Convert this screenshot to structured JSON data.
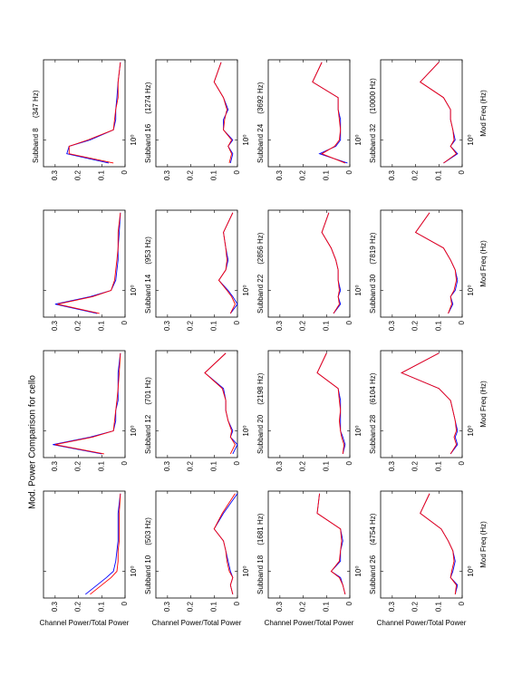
{
  "title": "Mod. Power Comparison for cello",
  "chart_data": [
    {
      "type": "line",
      "ylabel": "Channel Power/Total Power",
      "x": [
        0.55,
        0.7,
        0.85,
        1,
        1.3,
        1.7,
        2.2,
        3,
        4.5,
        7.5
      ],
      "xlim": [
        0.5,
        8
      ],
      "xscale": "log",
      "xticks": [
        {
          "value": 1,
          "label": "10⁰"
        }
      ],
      "ylim": [
        0,
        0.35
      ],
      "yticks": [
        0,
        0.1,
        0.2,
        0.3
      ],
      "series": [
        {
          "color": "#0000ff",
          "values": [
            0.17,
            0.12,
            0.08,
            0.05,
            0.04,
            0.035,
            0.03,
            0.03,
            0.03,
            0.02
          ]
        },
        {
          "color": "#ff0000",
          "values": [
            0.15,
            0.1,
            0.06,
            0.035,
            0.03,
            0.03,
            0.025,
            0.025,
            0.025,
            0.02
          ]
        }
      ]
    },
    {
      "type": "line",
      "x": [
        0.55,
        0.7,
        0.85,
        1,
        1.3,
        1.7,
        2.2,
        3,
        4.5,
        7.5
      ],
      "xlim": [
        0.5,
        8
      ],
      "xscale": "log",
      "xticks": [
        {
          "value": 1,
          "label": "10⁰"
        }
      ],
      "ylim": [
        0,
        0.35
      ],
      "yticks": [
        0,
        0.1,
        0.2,
        0.3
      ],
      "series": [
        {
          "color": "#0000ff",
          "values": [
            0.1,
            0.31,
            0.15,
            0.05,
            0.04,
            0.04,
            0.03,
            0.03,
            0.03,
            0.02
          ]
        },
        {
          "color": "#ff0000",
          "values": [
            0.09,
            0.3,
            0.14,
            0.05,
            0.045,
            0.04,
            0.035,
            0.03,
            0.025,
            0.02
          ]
        }
      ]
    },
    {
      "type": "line",
      "x": [
        0.55,
        0.7,
        0.85,
        1,
        1.3,
        1.7,
        2.2,
        3,
        4.5,
        7.5
      ],
      "xlim": [
        0.5,
        8
      ],
      "xscale": "log",
      "xticks": [
        {
          "value": 1,
          "label": "10⁰"
        }
      ],
      "ylim": [
        0,
        0.35
      ],
      "yticks": [
        0,
        0.1,
        0.2,
        0.3
      ],
      "series": [
        {
          "color": "#0000ff",
          "values": [
            0.12,
            0.3,
            0.15,
            0.06,
            0.04,
            0.035,
            0.03,
            0.03,
            0.025,
            0.02
          ]
        },
        {
          "color": "#ff0000",
          "values": [
            0.11,
            0.29,
            0.14,
            0.06,
            0.045,
            0.04,
            0.035,
            0.03,
            0.03,
            0.02
          ]
        }
      ]
    },
    {
      "type": "line",
      "title": "Subband 8     (347 Hz)",
      "x": [
        0.55,
        0.7,
        0.85,
        1,
        1.3,
        1.7,
        2.2,
        3,
        4.5,
        7.5
      ],
      "xlim": [
        0.5,
        8
      ],
      "xscale": "log",
      "xticks": [
        {
          "value": 1,
          "label": "10⁰"
        }
      ],
      "ylim": [
        0,
        0.35
      ],
      "yticks": [
        0,
        0.1,
        0.2,
        0.3
      ],
      "series": [
        {
          "color": "#0000ff",
          "values": [
            0.07,
            0.25,
            0.24,
            0.15,
            0.05,
            0.04,
            0.04,
            0.035,
            0.03,
            0.02
          ]
        },
        {
          "color": "#ff0000",
          "values": [
            0.05,
            0.24,
            0.24,
            0.16,
            0.05,
            0.045,
            0.04,
            0.03,
            0.03,
            0.02
          ]
        }
      ]
    },
    {
      "type": "line",
      "title": "Subband 10     (503 Hz)",
      "ylabel": "Channel Power/Total Power",
      "x": [
        0.55,
        0.7,
        0.85,
        1,
        1.3,
        1.7,
        2.2,
        3,
        4.5,
        7.5
      ],
      "xlim": [
        0.5,
        8
      ],
      "xscale": "log",
      "xticks": [
        {
          "value": 1,
          "label": "10⁰"
        }
      ],
      "ylim": [
        0,
        0.35
      ],
      "yticks": [
        0,
        0.1,
        0.2,
        0.3
      ],
      "series": [
        {
          "color": "#0000ff",
          "values": [
            0.02,
            0.03,
            0.02,
            0.03,
            0.04,
            0.05,
            0.06,
            0.1,
            0.06,
            0.0
          ]
        },
        {
          "color": "#ff0000",
          "values": [
            0.02,
            0.03,
            0.02,
            0.035,
            0.045,
            0.05,
            0.06,
            0.1,
            0.065,
            0.01
          ]
        }
      ]
    },
    {
      "type": "line",
      "title": "Subband 12     (701 Hz)",
      "x": [
        0.55,
        0.7,
        0.85,
        1,
        1.3,
        1.7,
        2.2,
        3,
        4.5,
        7.5
      ],
      "xlim": [
        0.5,
        8
      ],
      "xscale": "log",
      "xticks": [
        {
          "value": 1,
          "label": "10⁰"
        }
      ],
      "ylim": [
        0,
        0.35
      ],
      "yticks": [
        0,
        0.1,
        0.2,
        0.3
      ],
      "series": [
        {
          "color": "#0000ff",
          "values": [
            0.02,
            0.0,
            0.03,
            0.02,
            0.04,
            0.05,
            0.05,
            0.06,
            0.14,
            0.05
          ]
        },
        {
          "color": "#ff0000",
          "values": [
            0.03,
            0.01,
            0.03,
            0.025,
            0.04,
            0.05,
            0.05,
            0.065,
            0.14,
            0.05
          ]
        }
      ]
    },
    {
      "type": "line",
      "title": "Subband 14     (953 Hz)",
      "x": [
        0.55,
        0.7,
        0.85,
        1,
        1.3,
        1.7,
        2.2,
        3,
        4.5,
        7.5
      ],
      "xlim": [
        0.5,
        8
      ],
      "xscale": "log",
      "xticks": [
        {
          "value": 1,
          "label": "10⁰"
        }
      ],
      "ylim": [
        0,
        0.35
      ],
      "yticks": [
        0,
        0.1,
        0.2,
        0.3
      ],
      "series": [
        {
          "color": "#0000ff",
          "values": [
            0.03,
            0.0,
            0.02,
            0.04,
            0.08,
            0.05,
            0.04,
            0.05,
            0.06,
            0.02
          ]
        },
        {
          "color": "#ff0000",
          "values": [
            0.03,
            0.01,
            0.025,
            0.045,
            0.08,
            0.05,
            0.045,
            0.05,
            0.06,
            0.02
          ]
        }
      ]
    },
    {
      "type": "line",
      "title": "Subband 16     (1274 Hz)",
      "x": [
        0.55,
        0.7,
        0.85,
        1,
        1.3,
        1.7,
        2.2,
        3,
        4.5,
        7.5
      ],
      "xlim": [
        0.5,
        8
      ],
      "xscale": "log",
      "xticks": [
        {
          "value": 1,
          "label": "10⁰"
        }
      ],
      "ylim": [
        0,
        0.35
      ],
      "yticks": [
        0,
        0.1,
        0.2,
        0.3
      ],
      "series": [
        {
          "color": "#0000ff",
          "values": [
            0.03,
            0.02,
            0.04,
            0.02,
            0.06,
            0.06,
            0.04,
            0.06,
            0.1,
            0.07
          ]
        },
        {
          "color": "#ff0000",
          "values": [
            0.035,
            0.025,
            0.04,
            0.025,
            0.06,
            0.055,
            0.045,
            0.06,
            0.1,
            0.07
          ]
        }
      ]
    },
    {
      "type": "line",
      "title": "Subband 18     (1681 Hz)",
      "ylabel": "Channel Power/Total Power",
      "x": [
        0.55,
        0.7,
        0.85,
        1,
        1.3,
        1.7,
        2.2,
        3,
        4.5,
        7.5
      ],
      "xlim": [
        0.5,
        8
      ],
      "xscale": "log",
      "xticks": [
        {
          "value": 1,
          "label": "10⁰"
        }
      ],
      "ylim": [
        0,
        0.35
      ],
      "yticks": [
        0,
        0.1,
        0.2,
        0.3
      ],
      "series": [
        {
          "color": "#0000ff",
          "values": [
            0.02,
            0.03,
            0.04,
            0.08,
            0.04,
            0.04,
            0.03,
            0.04,
            0.14,
            0.13
          ]
        },
        {
          "color": "#ff0000",
          "values": [
            0.02,
            0.03,
            0.045,
            0.08,
            0.045,
            0.04,
            0.035,
            0.04,
            0.14,
            0.13
          ]
        }
      ]
    },
    {
      "type": "line",
      "title": "Subband 20     (2198 Hz)",
      "x": [
        0.55,
        0.7,
        0.85,
        1,
        1.3,
        1.7,
        2.2,
        3,
        4.5,
        7.5
      ],
      "xlim": [
        0.5,
        8
      ],
      "xscale": "log",
      "xticks": [
        {
          "value": 1,
          "label": "10⁰"
        }
      ],
      "ylim": [
        0,
        0.35
      ],
      "yticks": [
        0,
        0.1,
        0.2,
        0.3
      ],
      "series": [
        {
          "color": "#0000ff",
          "values": [
            0.03,
            0.02,
            0.03,
            0.04,
            0.04,
            0.04,
            0.04,
            0.05,
            0.14,
            0.1
          ]
        },
        {
          "color": "#ff0000",
          "values": [
            0.03,
            0.025,
            0.035,
            0.04,
            0.045,
            0.04,
            0.045,
            0.05,
            0.14,
            0.1
          ]
        }
      ]
    },
    {
      "type": "line",
      "title": "Subband 22     (2856 Hz)",
      "x": [
        0.55,
        0.7,
        0.85,
        1,
        1.3,
        1.7,
        2.2,
        3,
        4.5,
        7.5
      ],
      "xlim": [
        0.5,
        8
      ],
      "xscale": "log",
      "xticks": [
        {
          "value": 1,
          "label": "10⁰"
        }
      ],
      "ylim": [
        0,
        0.35
      ],
      "yticks": [
        0,
        0.1,
        0.2,
        0.3
      ],
      "series": [
        {
          "color": "#0000ff",
          "values": [
            0.07,
            0.04,
            0.05,
            0.04,
            0.05,
            0.05,
            0.06,
            0.08,
            0.12,
            0.09
          ]
        },
        {
          "color": "#ff0000",
          "values": [
            0.07,
            0.045,
            0.05,
            0.045,
            0.05,
            0.05,
            0.06,
            0.08,
            0.12,
            0.09
          ]
        }
      ]
    },
    {
      "type": "line",
      "title": "Subband 24     (3692 Hz)",
      "x": [
        0.55,
        0.7,
        0.85,
        1,
        1.3,
        1.7,
        2.2,
        3,
        4.5,
        7.5
      ],
      "xlim": [
        0.5,
        8
      ],
      "xscale": "log",
      "xticks": [
        {
          "value": 1,
          "label": "10⁰"
        }
      ],
      "ylim": [
        0,
        0.35
      ],
      "yticks": [
        0,
        0.1,
        0.2,
        0.3
      ],
      "series": [
        {
          "color": "#0000ff",
          "values": [
            0.01,
            0.13,
            0.06,
            0.04,
            0.04,
            0.04,
            0.05,
            0.05,
            0.16,
            0.12
          ]
        },
        {
          "color": "#ff0000",
          "values": [
            0.02,
            0.12,
            0.065,
            0.045,
            0.04,
            0.045,
            0.05,
            0.05,
            0.16,
            0.12
          ]
        }
      ]
    },
    {
      "type": "line",
      "title": "Subband 26     (4754 Hz)",
      "ylabel": "Channel Power/Total Power",
      "xlabel": "Mod Freq (Hz)",
      "x": [
        0.55,
        0.7,
        0.85,
        1,
        1.3,
        1.7,
        2.2,
        3,
        4.5,
        7.5
      ],
      "xlim": [
        0.5,
        8
      ],
      "xscale": "log",
      "xticks": [
        {
          "value": 1,
          "label": "10⁰"
        }
      ],
      "ylim": [
        0,
        0.35
      ],
      "yticks": [
        0,
        0.1,
        0.2,
        0.3
      ],
      "series": [
        {
          "color": "#0000ff",
          "values": [
            0.03,
            0.02,
            0.05,
            0.04,
            0.03,
            0.04,
            0.06,
            0.09,
            0.18,
            0.14
          ]
        },
        {
          "color": "#ff0000",
          "values": [
            0.03,
            0.025,
            0.05,
            0.045,
            0.035,
            0.04,
            0.06,
            0.09,
            0.18,
            0.14
          ]
        }
      ]
    },
    {
      "type": "line",
      "title": "Subband 28     (6104 Hz)",
      "xlabel": "Mod Freq (Hz)",
      "x": [
        0.55,
        0.7,
        0.85,
        1,
        1.3,
        1.7,
        2.2,
        3,
        4.5,
        7.5
      ],
      "xlim": [
        0.5,
        8
      ],
      "xscale": "log",
      "xticks": [
        {
          "value": 1,
          "label": "10⁰"
        }
      ],
      "ylim": [
        0,
        0.35
      ],
      "yticks": [
        0,
        0.1,
        0.2,
        0.3
      ],
      "series": [
        {
          "color": "#0000ff",
          "values": [
            0.05,
            0.02,
            0.03,
            0.02,
            0.03,
            0.04,
            0.05,
            0.1,
            0.26,
            0.1
          ]
        },
        {
          "color": "#ff0000",
          "values": [
            0.05,
            0.025,
            0.035,
            0.025,
            0.03,
            0.04,
            0.05,
            0.1,
            0.26,
            0.1
          ]
        }
      ]
    },
    {
      "type": "line",
      "title": "Subband 30     (7819 Hz)",
      "xlabel": "Mod Freq (Hz)",
      "x": [
        0.55,
        0.7,
        0.85,
        1,
        1.3,
        1.7,
        2.2,
        3,
        4.5,
        7.5
      ],
      "xlim": [
        0.5,
        8
      ],
      "xscale": "log",
      "xticks": [
        {
          "value": 1,
          "label": "10⁰"
        }
      ],
      "ylim": [
        0,
        0.35
      ],
      "yticks": [
        0,
        0.1,
        0.2,
        0.3
      ],
      "series": [
        {
          "color": "#0000ff",
          "values": [
            0.06,
            0.04,
            0.05,
            0.03,
            0.02,
            0.03,
            0.05,
            0.08,
            0.2,
            0.14
          ]
        },
        {
          "color": "#ff0000",
          "values": [
            0.06,
            0.045,
            0.05,
            0.035,
            0.025,
            0.03,
            0.05,
            0.08,
            0.2,
            0.14
          ]
        }
      ]
    },
    {
      "type": "line",
      "title": "Subband 32     (10000 Hz)",
      "xlabel": "Mod Freq (Hz)",
      "x": [
        0.55,
        0.7,
        0.85,
        1,
        1.3,
        1.7,
        2.2,
        3,
        4.5,
        7.5
      ],
      "xlim": [
        0.5,
        8
      ],
      "xscale": "log",
      "xticks": [
        {
          "value": 1,
          "label": "10⁰"
        }
      ],
      "ylim": [
        0,
        0.35
      ],
      "yticks": [
        0,
        0.1,
        0.2,
        0.3
      ],
      "series": [
        {
          "color": "#0000ff",
          "values": [
            0.08,
            0.02,
            0.05,
            0.03,
            0.04,
            0.05,
            0.05,
            0.08,
            0.18,
            0.1
          ]
        },
        {
          "color": "#ff0000",
          "values": [
            0.08,
            0.025,
            0.05,
            0.035,
            0.04,
            0.05,
            0.05,
            0.08,
            0.18,
            0.1
          ]
        }
      ]
    }
  ]
}
